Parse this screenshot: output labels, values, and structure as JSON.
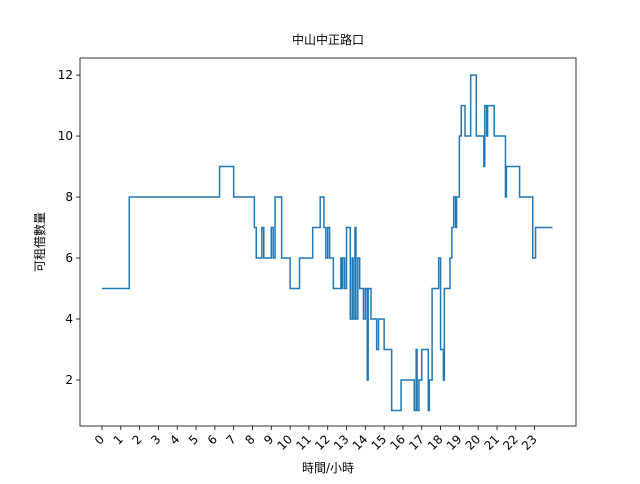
{
  "chart_data": {
    "type": "step",
    "title": "中山中正路口",
    "x_label": "時間/小時",
    "y_label": "可租借數量",
    "x": [
      0,
      1.45,
      6.25,
      7.0,
      8.1,
      8.2,
      8.5,
      8.6,
      9.0,
      9.1,
      9.2,
      9.55,
      10.0,
      10.5,
      11.2,
      11.6,
      11.8,
      11.9,
      12.0,
      12.1,
      12.3,
      12.7,
      12.75,
      12.8,
      12.9,
      13.0,
      13.2,
      13.3,
      13.35,
      13.45,
      13.5,
      13.6,
      13.7,
      13.9,
      14.0,
      14.1,
      14.15,
      14.3,
      14.6,
      14.7,
      15.0,
      15.4,
      15.9,
      16.6,
      16.7,
      16.75,
      16.85,
      17.0,
      17.35,
      17.4,
      17.55,
      17.9,
      18.0,
      18.15,
      18.2,
      18.5,
      18.6,
      18.7,
      18.8,
      18.85,
      19.0,
      19.1,
      19.3,
      19.6,
      19.9,
      20.3,
      20.35,
      20.45,
      20.5,
      20.85,
      21.45,
      21.5,
      22.2,
      22.9,
      23.05,
      23.95
    ],
    "series": [
      {
        "name": "可租借數量",
        "color": "#1f77b4",
        "values": [
          5,
          8,
          9,
          8,
          7,
          6,
          7,
          6,
          7,
          6,
          8,
          6,
          5,
          6,
          7,
          8,
          7,
          6,
          7,
          6,
          5,
          6,
          5,
          6,
          5,
          7,
          4,
          6,
          4,
          7,
          4,
          6,
          5,
          4,
          5,
          2,
          5,
          4,
          3,
          4,
          3,
          1,
          2,
          1,
          3,
          1,
          2,
          3,
          1,
          2,
          5,
          6,
          3,
          2,
          5,
          6,
          7,
          8,
          7,
          8,
          10,
          11,
          10,
          12,
          10,
          9,
          11,
          10,
          11,
          10,
          8,
          9,
          8,
          6,
          7,
          7
        ]
      }
    ],
    "xlim": [
      -1.17,
      25.2
    ],
    "ylim": [
      0.49,
      12.56
    ],
    "xticks": [
      0,
      1,
      2,
      3,
      4,
      5,
      6,
      7,
      8,
      9,
      10,
      11,
      12,
      13,
      14,
      15,
      16,
      17,
      18,
      19,
      20,
      21,
      22,
      23
    ],
    "yticks": [
      2,
      4,
      6,
      8,
      10,
      12
    ]
  }
}
